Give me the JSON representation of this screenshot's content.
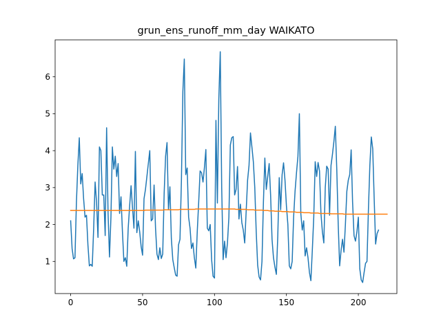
{
  "chart_data": {
    "type": "line",
    "title": "grun_ens_runoff_mm_day WAIKATO",
    "xlabel": "",
    "ylabel": "",
    "xlim": [
      -10.8,
      226.8
    ],
    "ylim": [
      0.13,
      7.0
    ],
    "xticks": [
      0,
      50,
      100,
      150,
      200
    ],
    "yticks": [
      1,
      2,
      3,
      4,
      5,
      6
    ],
    "grid": false,
    "legend": "none",
    "series": [
      {
        "color": "#1f77b4",
        "x_start": 0,
        "values": [
          2.1,
          1.35,
          1.07,
          1.1,
          2.6,
          3.6,
          4.35,
          3.1,
          3.38,
          2.7,
          2.2,
          2.25,
          1.45,
          0.88,
          0.92,
          0.87,
          1.9,
          3.15,
          2.6,
          1.65,
          4.1,
          4.0,
          2.8,
          2.8,
          1.7,
          4.62,
          2.3,
          1.12,
          2.2,
          4.1,
          3.5,
          3.85,
          3.3,
          3.65,
          2.3,
          2.75,
          1.8,
          1.0,
          1.1,
          0.87,
          1.9,
          2.5,
          3.05,
          2.45,
          1.9,
          3.98,
          1.78,
          2.1,
          1.8,
          1.4,
          1.17,
          2.7,
          2.95,
          3.3,
          3.65,
          4.0,
          2.1,
          2.15,
          3.07,
          1.9,
          1.2,
          1.05,
          1.37,
          1.08,
          1.2,
          2.85,
          3.85,
          4.22,
          2.4,
          3.02,
          1.62,
          1.05,
          0.83,
          0.63,
          0.6,
          1.45,
          1.6,
          3.2,
          5.6,
          6.48,
          3.35,
          3.53,
          2.2,
          1.9,
          1.35,
          1.5,
          1.1,
          0.82,
          1.8,
          2.6,
          3.45,
          3.4,
          3.15,
          3.55,
          4.03,
          1.9,
          1.83,
          2.0,
          1.05,
          0.6,
          0.55,
          4.82,
          2.58,
          5.4,
          6.68,
          3.0,
          1.05,
          1.55,
          1.1,
          1.5,
          2.2,
          4.15,
          4.35,
          4.38,
          2.8,
          2.95,
          3.57,
          2.15,
          2.55,
          2.05,
          1.85,
          1.5,
          2.35,
          3.2,
          3.6,
          4.48,
          4.1,
          3.7,
          3.0,
          1.8,
          0.9,
          0.58,
          0.5,
          1.0,
          2.6,
          3.8,
          2.95,
          3.3,
          3.65,
          2.8,
          1.6,
          1.1,
          0.85,
          0.65,
          1.7,
          3.27,
          2.4,
          3.35,
          3.67,
          3.2,
          2.5,
          2.0,
          0.88,
          0.8,
          1.0,
          2.2,
          2.9,
          3.4,
          3.85,
          5.0,
          2.3,
          1.85,
          2.1,
          1.15,
          1.37,
          1.1,
          0.7,
          0.48,
          1.3,
          2.2,
          3.7,
          3.3,
          3.68,
          3.45,
          2.3,
          1.8,
          1.5,
          3.0,
          3.58,
          3.5,
          2.25,
          3.6,
          3.9,
          4.25,
          4.66,
          3.5,
          2.0,
          0.88,
          1.3,
          1.6,
          1.25,
          2.0,
          2.9,
          3.2,
          3.35,
          4.02,
          2.6,
          1.7,
          1.55,
          1.8,
          2.2,
          0.8,
          0.5,
          0.43,
          0.7,
          0.95,
          1.0,
          2.4,
          3.6,
          4.37,
          4.05,
          2.7,
          1.47,
          1.75,
          1.85
        ]
      },
      {
        "color": "#ff7f0e",
        "x_start": 0,
        "values": [
          2.38,
          2.38,
          2.38,
          2.38,
          2.38,
          2.38,
          2.38,
          2.38,
          2.38,
          2.38,
          2.38,
          2.38,
          2.38,
          2.38,
          2.38,
          2.38,
          2.38,
          2.38,
          2.38,
          2.38,
          2.38,
          2.38,
          2.38,
          2.38,
          2.38,
          2.38,
          2.38,
          2.38,
          2.38,
          2.38,
          2.38,
          2.38,
          2.38,
          2.38,
          2.38,
          2.38,
          2.38,
          2.38,
          2.38,
          2.38,
          2.38,
          2.38,
          2.38,
          2.38,
          2.38,
          2.38,
          2.38,
          2.38,
          2.38,
          2.38,
          2.38,
          2.38,
          2.39,
          2.39,
          2.39,
          2.39,
          2.39,
          2.39,
          2.39,
          2.39,
          2.39,
          2.39,
          2.39,
          2.39,
          2.39,
          2.4,
          2.4,
          2.4,
          2.4,
          2.4,
          2.4,
          2.4,
          2.4,
          2.4,
          2.4,
          2.4,
          2.41,
          2.41,
          2.41,
          2.41,
          2.41,
          2.41,
          2.41,
          2.41,
          2.41,
          2.41,
          2.41,
          2.42,
          2.42,
          2.42,
          2.42,
          2.42,
          2.42,
          2.42,
          2.42,
          2.42,
          2.42,
          2.42,
          2.42,
          2.42,
          2.42,
          2.42,
          2.42,
          2.42,
          2.42,
          2.42,
          2.42,
          2.42,
          2.42,
          2.42,
          2.42,
          2.42,
          2.42,
          2.42,
          2.42,
          2.41,
          2.41,
          2.41,
          2.41,
          2.41,
          2.41,
          2.41,
          2.41,
          2.4,
          2.4,
          2.4,
          2.4,
          2.4,
          2.39,
          2.39,
          2.39,
          2.39,
          2.39,
          2.39,
          2.38,
          2.38,
          2.38,
          2.38,
          2.37,
          2.37,
          2.37,
          2.37,
          2.36,
          2.36,
          2.36,
          2.36,
          2.36,
          2.35,
          2.35,
          2.35,
          2.35,
          2.35,
          2.34,
          2.34,
          2.34,
          2.34,
          2.34,
          2.33,
          2.33,
          2.33,
          2.33,
          2.33,
          2.32,
          2.32,
          2.32,
          2.32,
          2.32,
          2.31,
          2.31,
          2.31,
          2.31,
          2.31,
          2.31,
          2.3,
          2.3,
          2.3,
          2.3,
          2.3,
          2.3,
          2.3,
          2.3,
          2.29,
          2.29,
          2.29,
          2.29,
          2.29,
          2.29,
          2.29,
          2.29,
          2.29,
          2.28,
          2.28,
          2.28,
          2.28,
          2.28,
          2.28,
          2.28,
          2.28,
          2.28,
          2.28,
          2.28,
          2.28,
          2.28,
          2.28,
          2.28,
          2.28,
          2.28,
          2.28,
          2.28,
          2.28,
          2.28,
          2.28,
          2.28,
          2.28,
          2.28,
          2.28,
          2.28,
          2.28,
          2.28,
          2.28,
          2.28
        ]
      }
    ]
  }
}
